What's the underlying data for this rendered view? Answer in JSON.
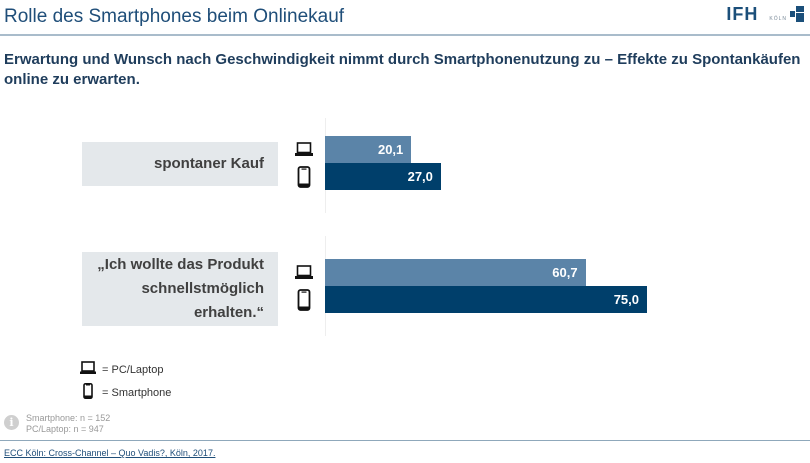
{
  "header": {
    "title": "Rolle des Smartphones beim Onlinekauf",
    "logo_text": "IFH",
    "logo_sub": "KÖLN"
  },
  "subtitle": "Erwartung und Wunsch nach Geschwindigkeit nimmt durch Smartphonenutzung zu – Effekte zu Spontankäufen online zu erwarten.",
  "chart_data": {
    "type": "bar",
    "orientation": "horizontal",
    "title": "",
    "xlabel": "",
    "ylabel": "",
    "categories": [
      "spontaner Kauf",
      "„Ich wollte das Produkt schnellstmöglich erhalten.“"
    ],
    "category_lines": [
      [
        "spontaner Kauf"
      ],
      [
        "„Ich wollte das Produkt",
        "schnellstmöglich",
        "erhalten.“"
      ]
    ],
    "series": [
      {
        "name": "PC/Laptop",
        "icon": "laptop-icon",
        "color": "#5b84a8",
        "values": [
          20.1,
          60.7
        ],
        "labels": [
          "20,1",
          "60,7"
        ]
      },
      {
        "name": "Smartphone",
        "icon": "smartphone-icon",
        "color": "#003f6b",
        "values": [
          27.0,
          75.0
        ],
        "labels": [
          "27,0",
          "75,0"
        ]
      }
    ],
    "xlim": [
      0,
      100
    ],
    "grid": false,
    "legend": "bottom-left"
  },
  "legend": {
    "items": [
      {
        "label": "= PC/Laptop",
        "icon": "laptop-icon"
      },
      {
        "label": "= Smartphone",
        "icon": "smartphone-icon"
      }
    ]
  },
  "notes": {
    "lines": [
      "Smartphone: n = 152",
      "PC/Laptop: n = 947"
    ]
  },
  "source": "ECC Köln: Cross-Channel – Quo Vadis?, Köln, 2017."
}
